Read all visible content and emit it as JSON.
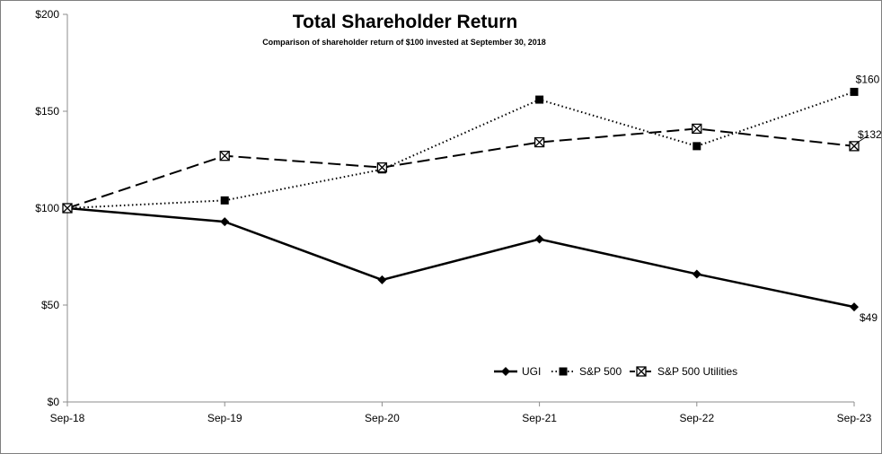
{
  "chart_data": {
    "type": "line",
    "title": "Total Shareholder Return",
    "subtitle": "Comparison of shareholder return of $100 invested at September 30, 2018",
    "categories": [
      "Sep-18",
      "Sep-19",
      "Sep-20",
      "Sep-21",
      "Sep-22",
      "Sep-23"
    ],
    "ylim": [
      0,
      200
    ],
    "yticks": [
      0,
      50,
      100,
      150,
      200
    ],
    "ytick_labels": [
      "$0",
      "$50",
      "$100",
      "$150",
      "$200"
    ],
    "grid": false,
    "legend_position": "bottom-right",
    "series": [
      {
        "name": "UGI",
        "marker": "diamond",
        "line": "solid",
        "values": [
          100,
          93,
          63,
          84,
          66,
          49
        ],
        "end_label": "$49"
      },
      {
        "name": "S&P 500",
        "marker": "square",
        "line": "dotted",
        "values": [
          100,
          104,
          120,
          156,
          132,
          160
        ],
        "end_label": "$160"
      },
      {
        "name": "S&P 500 Utilities",
        "marker": "x-box",
        "line": "dashed",
        "values": [
          100,
          127,
          121,
          134,
          141,
          132
        ],
        "end_label": "$132"
      }
    ]
  }
}
